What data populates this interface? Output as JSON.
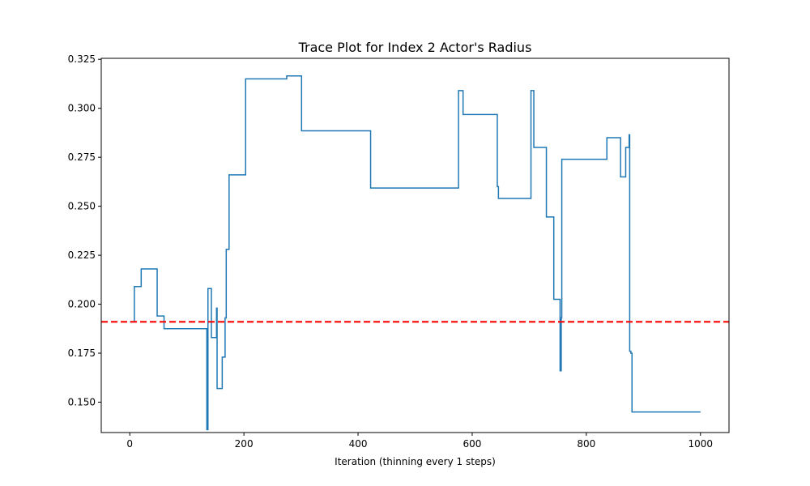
{
  "chart_data": {
    "type": "line",
    "title": "Trace Plot for Index 2 Actor's Radius",
    "xlabel": "Iteration (thinning every 1 steps)",
    "ylabel": "",
    "xlim": [
      -50,
      1050
    ],
    "ylim": [
      0.1345,
      0.3255
    ],
    "xticks": [
      0,
      200,
      400,
      600,
      800,
      1000
    ],
    "yticks": [
      0.15,
      0.175,
      0.2,
      0.225,
      0.25,
      0.275,
      0.3,
      0.325
    ],
    "ytick_labels": [
      "0.150",
      "0.175",
      "0.200",
      "0.225",
      "0.250",
      "0.275",
      "0.300",
      "0.325"
    ],
    "grid": false,
    "legend": "none",
    "series": [
      {
        "color": "#1f77b4",
        "style": "steps-post",
        "points": [
          [
            0,
            0.191
          ],
          [
            8,
            0.209
          ],
          [
            20,
            0.218
          ],
          [
            48,
            0.194
          ],
          [
            60,
            0.1875
          ],
          [
            135,
            0.136
          ],
          [
            137,
            0.208
          ],
          [
            143,
            0.183
          ],
          [
            152,
            0.198
          ],
          [
            153,
            0.157
          ],
          [
            162,
            0.173
          ],
          [
            167,
            0.193
          ],
          [
            169,
            0.228
          ],
          [
            174,
            0.266
          ],
          [
            203,
            0.315
          ],
          [
            275,
            0.3165
          ],
          [
            301,
            0.2885
          ],
          [
            422,
            0.2593
          ],
          [
            576,
            0.309
          ],
          [
            584,
            0.2968
          ],
          [
            644,
            0.26
          ],
          [
            646,
            0.254
          ],
          [
            703,
            0.309
          ],
          [
            708,
            0.28
          ],
          [
            730,
            0.2445
          ],
          [
            743,
            0.2025
          ],
          [
            754,
            0.166
          ],
          [
            756,
            0.193
          ],
          [
            757,
            0.274
          ],
          [
            836,
            0.285
          ],
          [
            860,
            0.265
          ],
          [
            869,
            0.28
          ],
          [
            875,
            0.2865
          ],
          [
            876,
            0.176
          ],
          [
            878,
            0.175
          ],
          [
            880,
            0.145
          ],
          [
            1000,
            0.145
          ]
        ]
      }
    ],
    "reference_line": {
      "y": 0.191,
      "color": "#ff0000",
      "style": "dashed"
    }
  }
}
